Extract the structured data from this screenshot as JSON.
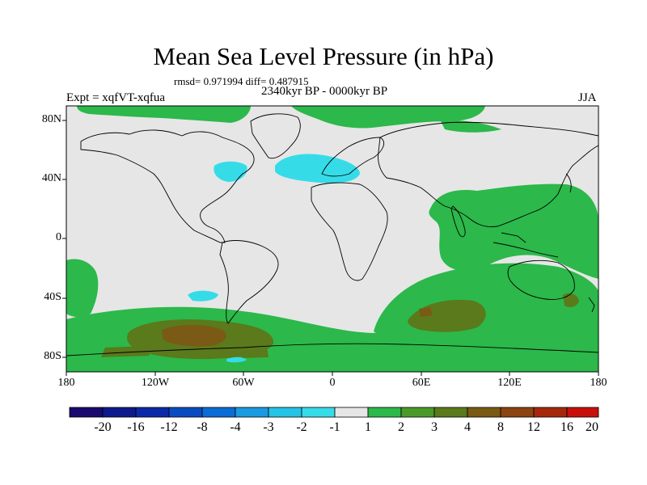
{
  "title": "Mean Sea Level Pressure (in hPa)",
  "stats": "rmsd= 0.971994 diff= 0.487915",
  "period": "2340kyr BP - 0000kyr BP",
  "experiment": "Expt = xqfVT-xqfua",
  "season": "JJA",
  "y_axis": [
    "80N",
    "40N",
    "0",
    "40S",
    "80S"
  ],
  "x_axis": [
    "180",
    "120W",
    "60W",
    "0",
    "60E",
    "120E",
    "180"
  ],
  "colorbar": {
    "labels": [
      "-20",
      "-16",
      "-12",
      "-8",
      "-4",
      "-3",
      "-2",
      "-1",
      "1",
      "2",
      "3",
      "4",
      "8",
      "12",
      "16",
      "20"
    ],
    "colors": [
      "#1a0a6e",
      "#0d1a8c",
      "#0a2aa8",
      "#0a4cc0",
      "#0a6cd4",
      "#1a9ae0",
      "#25c3e6",
      "#35dce8",
      "#e6e6e6",
      "#2cb84a",
      "#4a9a2a",
      "#5a7a1c",
      "#7a5a14",
      "#8c4410",
      "#a6280a",
      "#c8100a"
    ]
  },
  "anomaly_colors": {
    "background": "#e6e6e6",
    "positive_weak": "#2cb84a",
    "positive_mid": "#5a7a1c",
    "positive_strong": "#7a5a14",
    "negative_weak": "#35dce8"
  }
}
